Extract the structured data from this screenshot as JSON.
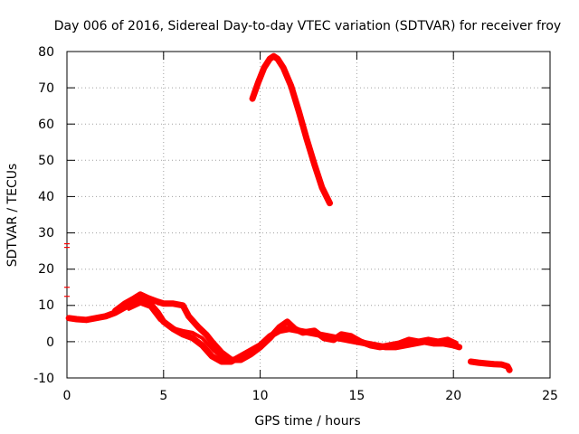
{
  "chart_data": {
    "type": "line",
    "title": "Day 006 of 2016, Sidereal Day-to-day VTEC variation (SDTVAR) for receiver froy",
    "xlabel": "GPS time / hours",
    "ylabel": "SDTVAR / TECUs",
    "xlim": [
      0,
      25
    ],
    "ylim": [
      -10,
      80
    ],
    "x_ticks": [
      0,
      5,
      10,
      15,
      20,
      25
    ],
    "y_ticks": [
      -10,
      0,
      10,
      20,
      30,
      40,
      50,
      60,
      70,
      80
    ],
    "grid": true,
    "legend": "none",
    "series_color": "#ff0000",
    "series": [
      {
        "name": "segment-early-lower",
        "style": "thick",
        "points": [
          [
            0.1,
            6.5
          ],
          [
            0.5,
            6.2
          ],
          [
            1.0,
            6.0
          ],
          [
            1.5,
            6.5
          ],
          [
            2.0,
            7.0
          ],
          [
            2.5,
            8.0
          ],
          [
            3.0,
            9.5
          ],
          [
            3.5,
            11.0
          ],
          [
            4.0,
            11.5
          ],
          [
            4.3,
            10.5
          ],
          [
            4.7,
            8.0
          ],
          [
            5.0,
            5.5
          ],
          [
            5.5,
            3.5
          ],
          [
            6.0,
            2.0
          ],
          [
            6.5,
            1.0
          ],
          [
            7.0,
            -1.0
          ],
          [
            7.5,
            -4.0
          ],
          [
            8.0,
            -5.5
          ],
          [
            8.5,
            -5.5
          ],
          [
            9.0,
            -4.0
          ],
          [
            9.5,
            -2.5
          ],
          [
            10.0,
            -1.0
          ],
          [
            10.5,
            1.5
          ],
          [
            11.0,
            3.0
          ],
          [
            11.5,
            3.5
          ],
          [
            12.0,
            3.0
          ],
          [
            12.5,
            2.5
          ],
          [
            13.0,
            2.0
          ],
          [
            13.5,
            1.5
          ],
          [
            14.0,
            1.0
          ],
          [
            14.5,
            0.5
          ],
          [
            15.0,
            0.0
          ],
          [
            15.5,
            -0.5
          ],
          [
            16.0,
            -1.0
          ],
          [
            16.5,
            -1.5
          ],
          [
            17.0,
            -1.5
          ],
          [
            17.5,
            -1.0
          ],
          [
            18.0,
            -0.5
          ],
          [
            18.5,
            0.0
          ],
          [
            19.0,
            -0.5
          ],
          [
            19.5,
            -0.5
          ],
          [
            20.0,
            -1.0
          ],
          [
            20.3,
            -1.5
          ]
        ]
      },
      {
        "name": "segment-early-upper",
        "style": "thick",
        "points": [
          [
            2.5,
            8.5
          ],
          [
            3.0,
            10.5
          ],
          [
            3.5,
            12.0
          ],
          [
            3.8,
            13.0
          ],
          [
            4.2,
            12.0
          ],
          [
            4.7,
            11.0
          ],
          [
            5.0,
            10.5
          ],
          [
            5.5,
            10.5
          ],
          [
            6.0,
            10.0
          ],
          [
            6.3,
            7.0
          ],
          [
            6.8,
            4.0
          ],
          [
            7.2,
            2.0
          ],
          [
            7.5,
            0.0
          ],
          [
            8.0,
            -3.0
          ],
          [
            8.5,
            -5.0
          ],
          [
            9.0,
            -5.0
          ],
          [
            9.5,
            -3.5
          ],
          [
            10.0,
            -1.5
          ],
          [
            10.5,
            1.0
          ],
          [
            11.0,
            4.0
          ],
          [
            11.4,
            5.5
          ],
          [
            11.8,
            3.5
          ],
          [
            12.2,
            2.5
          ],
          [
            12.8,
            3.0
          ],
          [
            13.3,
            1.0
          ],
          [
            13.8,
            0.5
          ],
          [
            14.2,
            2.0
          ],
          [
            14.7,
            1.5
          ],
          [
            15.2,
            0.0
          ],
          [
            15.7,
            -1.0
          ],
          [
            16.2,
            -1.5
          ],
          [
            16.7,
            -1.0
          ],
          [
            17.2,
            -0.5
          ],
          [
            17.7,
            0.5
          ],
          [
            18.2,
            0.0
          ],
          [
            18.7,
            0.5
          ],
          [
            19.2,
            0.0
          ],
          [
            19.7,
            0.5
          ],
          [
            20.1,
            -0.5
          ]
        ]
      },
      {
        "name": "segment-early-middle",
        "style": "thin",
        "points": [
          [
            3.2,
            9.0
          ],
          [
            3.8,
            10.5
          ],
          [
            4.3,
            9.5
          ],
          [
            4.8,
            6.0
          ],
          [
            5.3,
            4.0
          ],
          [
            6.0,
            3.0
          ],
          [
            6.5,
            2.5
          ],
          [
            7.0,
            1.0
          ],
          [
            7.6,
            -2.5
          ],
          [
            8.2,
            -5.0
          ]
        ]
      },
      {
        "name": "segment-peak",
        "style": "thick",
        "points": [
          [
            9.6,
            67.0
          ],
          [
            9.9,
            71.5
          ],
          [
            10.2,
            75.5
          ],
          [
            10.5,
            78.0
          ],
          [
            10.7,
            78.7
          ],
          [
            10.9,
            78.0
          ],
          [
            11.2,
            75.5
          ],
          [
            11.6,
            70.5
          ],
          [
            12.0,
            63.5
          ],
          [
            12.4,
            56.0
          ],
          [
            12.8,
            49.0
          ],
          [
            13.2,
            42.5
          ],
          [
            13.6,
            38.2
          ]
        ]
      },
      {
        "name": "segment-late",
        "style": "thick",
        "points": [
          [
            20.9,
            -5.5
          ],
          [
            21.3,
            -5.8
          ],
          [
            21.7,
            -6.0
          ],
          [
            22.1,
            -6.2
          ],
          [
            22.5,
            -6.3
          ],
          [
            22.8,
            -6.8
          ],
          [
            22.9,
            -7.8
          ]
        ]
      },
      {
        "name": "outliers",
        "style": "ticks",
        "points": [
          [
            0.0,
            27.0
          ],
          [
            0.0,
            26.0
          ],
          [
            0.0,
            15.0
          ],
          [
            0.0,
            12.5
          ]
        ]
      }
    ]
  }
}
